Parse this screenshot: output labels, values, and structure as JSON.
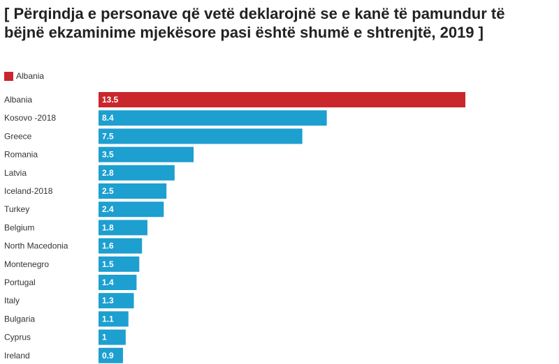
{
  "chart_data": {
    "type": "bar",
    "orientation": "horizontal",
    "title": "[ Përqindja e personave që vetë deklarojnë se e kanë të pamundur të bëjnë ekzaminime mjekësore pasi është shumë e shtrenjtë, 2019 ]",
    "legend": {
      "entries": [
        {
          "label": "Albania",
          "color": "#c9272c"
        }
      ],
      "placement": "top-left"
    },
    "categories": [
      "Albania",
      "Kosovo -2018",
      "Greece",
      "Romania",
      "Latvia",
      "Iceland-2018",
      "Turkey",
      "Belgium",
      "North Macedonia",
      "Montenegro",
      "Portugal",
      "Italy",
      "Bulgaria",
      "Cyprus",
      "Ireland"
    ],
    "values": [
      13.5,
      8.4,
      7.5,
      3.5,
      2.8,
      2.5,
      2.4,
      1.8,
      1.6,
      1.5,
      1.4,
      1.3,
      1.1,
      1,
      0.9
    ],
    "value_labels": [
      "13.5",
      "8.4",
      "7.5",
      "3.5",
      "2.8",
      "2.5",
      "2.4",
      "1.8",
      "1.6",
      "1.5",
      "1.4",
      "1.3",
      "1.1",
      "1",
      "0.9"
    ],
    "highlight_index": 0,
    "colors": {
      "highlight": "#c9272c",
      "default": "#1d9fd0"
    },
    "xlim": [
      0,
      13.5
    ],
    "grid": false,
    "xlabel": "",
    "ylabel": ""
  }
}
